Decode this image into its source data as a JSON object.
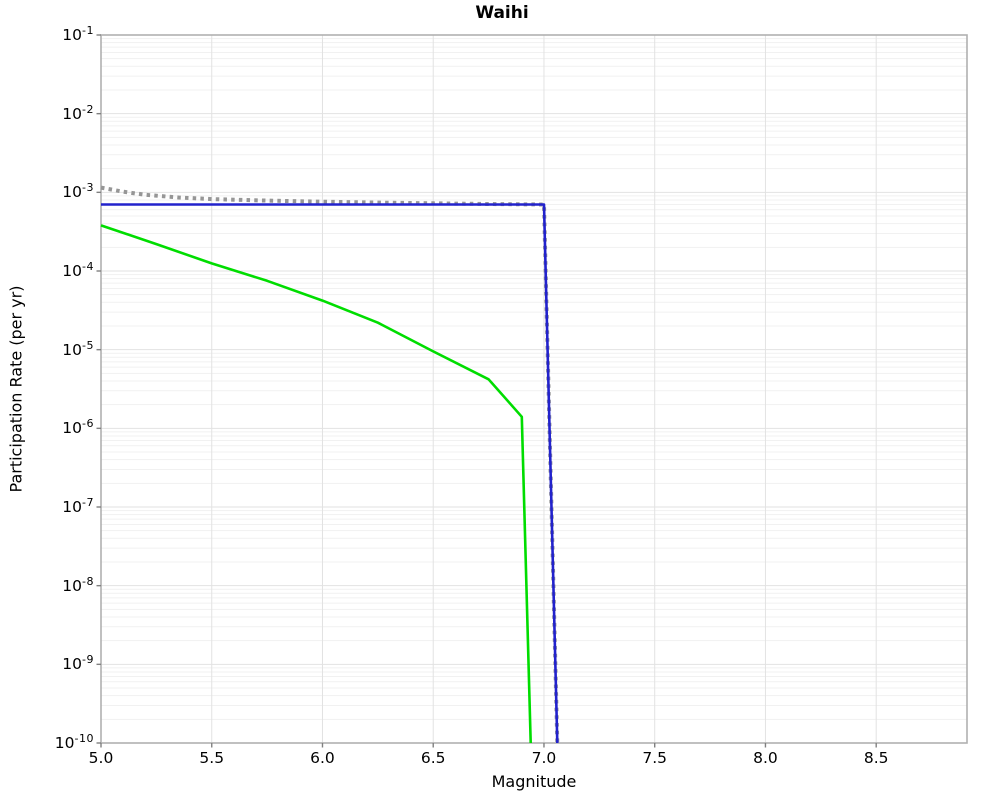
{
  "chart_data": {
    "type": "line",
    "title": "Waihi",
    "xlabel": "Magnitude",
    "ylabel": "Participation Rate (per yr)",
    "xlim": [
      5.0,
      8.91
    ],
    "ylim": [
      1e-10,
      0.1
    ],
    "ylim_log10": [
      -10,
      -1
    ],
    "x_ticks": [
      5.0,
      5.5,
      6.0,
      6.5,
      7.0,
      7.5,
      8.0,
      8.5
    ],
    "y_tick_exponents": [
      -1,
      -2,
      -3,
      -4,
      -5,
      -6,
      -7,
      -8,
      -9,
      -10
    ],
    "grid": "on",
    "legend_position": "none",
    "series": [
      {
        "name": "gray-dotted-curve",
        "color": "#969696",
        "style": "dotted",
        "width": 4,
        "points": [
          [
            5.0,
            0.00115
          ],
          [
            5.1,
            0.00102
          ],
          [
            5.2,
            0.00093
          ],
          [
            5.35,
            0.00086
          ],
          [
            5.5,
            0.00082
          ],
          [
            5.75,
            0.000785
          ],
          [
            6.0,
            0.00076
          ],
          [
            6.25,
            0.00074
          ],
          [
            6.5,
            0.000725
          ],
          [
            6.75,
            0.00071
          ],
          [
            7.0,
            0.0007
          ],
          [
            7.06,
            1e-10
          ]
        ]
      },
      {
        "name": "blue-solid-curve",
        "color": "#2222cc",
        "style": "solid",
        "width": 2.6,
        "points": [
          [
            5.0,
            0.0007
          ],
          [
            7.0,
            0.0007
          ],
          [
            7.06,
            1e-10
          ]
        ]
      },
      {
        "name": "green-solid-curve",
        "color": "#00dd00",
        "style": "solid",
        "width": 2.6,
        "points": [
          [
            5.0,
            0.00038
          ],
          [
            5.25,
            0.00022
          ],
          [
            5.5,
            0.000125
          ],
          [
            5.75,
            7.5e-05
          ],
          [
            6.0,
            4.2e-05
          ],
          [
            6.25,
            2.2e-05
          ],
          [
            6.5,
            9.5e-06
          ],
          [
            6.75,
            4.2e-06
          ],
          [
            6.9,
            1.4e-06
          ],
          [
            6.94,
            1e-10
          ]
        ]
      }
    ],
    "colors": {
      "grid_major": "#e2e2e2",
      "grid_minor": "#f1f1f1",
      "frame": "#b0b0b0",
      "tick": "#808080",
      "text": "#000000",
      "background": "#ffffff"
    }
  }
}
